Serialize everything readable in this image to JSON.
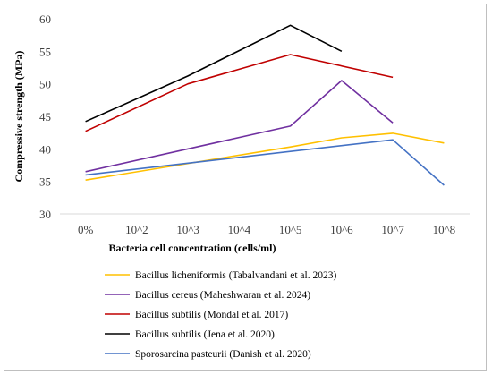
{
  "chart_data": {
    "type": "line",
    "title": "",
    "xlabel": "Bacteria cell concentration (cells/ml)",
    "ylabel": "Compressive strength (MPa)",
    "categories": [
      "0%",
      "10^2",
      "10^3",
      "10^4",
      "10^5",
      "10^6",
      "10^7",
      "10^8"
    ],
    "ylim": [
      30,
      60
    ],
    "yticks": [
      30,
      35,
      40,
      45,
      50,
      55,
      60
    ],
    "grid": false,
    "legend_position": "bottom",
    "series": [
      {
        "name": "Bacillus licheniformis (Tabalvandani et al. 2023)",
        "color": "#FFC000",
        "values": [
          35.2,
          null,
          null,
          null,
          40.3,
          41.7,
          42.4,
          40.9
        ]
      },
      {
        "name": "Bacillus cereus (Maheshwaran et al. 2024)",
        "color": "#7030A0",
        "values": [
          36.5,
          null,
          null,
          null,
          43.5,
          50.5,
          44.0,
          null
        ]
      },
      {
        "name": "Bacillus subtilis (Mondal et al. 2017)",
        "color": "#C00000",
        "values": [
          42.7,
          null,
          50.0,
          null,
          54.5,
          null,
          51.0,
          null
        ]
      },
      {
        "name": "Bacillus subtilis (Jena et al. 2020)",
        "color": "#000000",
        "values": [
          44.2,
          null,
          51.2,
          null,
          59.0,
          55.0,
          null,
          null
        ]
      },
      {
        "name": "Sporosarcina pasteurii (Danish et al. 2020)",
        "color": "#4472C4",
        "values": [
          36.0,
          null,
          37.8,
          null,
          39.6,
          null,
          41.4,
          34.4
        ]
      }
    ]
  }
}
